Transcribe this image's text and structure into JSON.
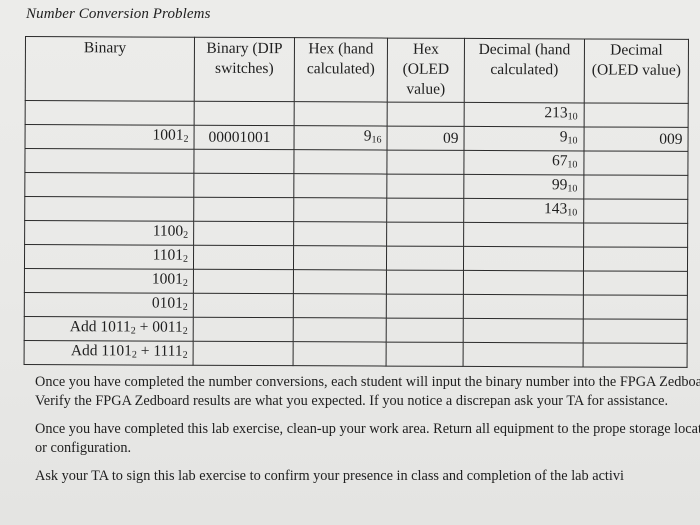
{
  "title": "Number Conversion Problems",
  "headers": [
    "Binary",
    "Binary (DIP switches)",
    "Hex (hand calculated)",
    "Hex (OLED value)",
    "Decimal (hand calculated)",
    "Decimal (OLED value)"
  ],
  "rows": [
    {
      "binary": "",
      "binary_base": "",
      "dip": "",
      "hex_hand": "",
      "hex_hand_base": "",
      "hex_oled": "",
      "dec_hand": "213",
      "dec_hand_base": "10",
      "dec_oled": ""
    },
    {
      "binary": "1001",
      "binary_base": "2",
      "dip": "00001001",
      "hex_hand": "9",
      "hex_hand_base": "16",
      "hex_oled": "09",
      "dec_hand": "9",
      "dec_hand_base": "10",
      "dec_oled": "009"
    },
    {
      "binary": "",
      "binary_base": "",
      "dip": "",
      "hex_hand": "",
      "hex_hand_base": "",
      "hex_oled": "",
      "dec_hand": "67",
      "dec_hand_base": "10",
      "dec_oled": ""
    },
    {
      "binary": "",
      "binary_base": "",
      "dip": "",
      "hex_hand": "",
      "hex_hand_base": "",
      "hex_oled": "",
      "dec_hand": "99",
      "dec_hand_base": "10",
      "dec_oled": ""
    },
    {
      "binary": "",
      "binary_base": "",
      "dip": "",
      "hex_hand": "",
      "hex_hand_base": "",
      "hex_oled": "",
      "dec_hand": "143",
      "dec_hand_base": "10",
      "dec_oled": ""
    },
    {
      "binary": "1100",
      "binary_base": "2",
      "dip": "",
      "hex_hand": "",
      "hex_hand_base": "",
      "hex_oled": "",
      "dec_hand": "",
      "dec_hand_base": "",
      "dec_oled": ""
    },
    {
      "binary": "1101",
      "binary_base": "2",
      "dip": "",
      "hex_hand": "",
      "hex_hand_base": "",
      "hex_oled": "",
      "dec_hand": "",
      "dec_hand_base": "",
      "dec_oled": ""
    },
    {
      "binary": "1001",
      "binary_base": "2",
      "dip": "",
      "hex_hand": "",
      "hex_hand_base": "",
      "hex_oled": "",
      "dec_hand": "",
      "dec_hand_base": "",
      "dec_oled": ""
    },
    {
      "binary": "0101",
      "binary_base": "2",
      "dip": "",
      "hex_hand": "",
      "hex_hand_base": "",
      "hex_oled": "",
      "dec_hand": "",
      "dec_hand_base": "",
      "dec_oled": ""
    },
    {
      "binary": "Add 1011",
      "binary_base": "2",
      "binary_op": " + 0011",
      "binary_op_base": "2",
      "dip": "",
      "hex_hand": "",
      "hex_hand_base": "",
      "hex_oled": "",
      "dec_hand": "",
      "dec_hand_base": "",
      "dec_oled": ""
    },
    {
      "binary": "Add 1101",
      "binary_base": "2",
      "binary_op": " + 1111",
      "binary_op_base": "2",
      "dip": "",
      "hex_hand": "",
      "hex_hand_base": "",
      "hex_oled": "",
      "dec_hand": "",
      "dec_hand_base": "",
      "dec_oled": ""
    }
  ],
  "paragraphs": [
    "Once you have completed the number conversions, each student will input the binary number into the FPGA Zedboard. Verify the FPGA Zedboard results are what you expected. If you notice a discrepan ask your TA for assistance.",
    "Once you have completed this lab exercise, clean-up your work area. Return all equipment to the prope storage location or configuration.",
    "Ask your TA to sign this lab exercise to confirm your presence in class and completion of the lab activi"
  ]
}
